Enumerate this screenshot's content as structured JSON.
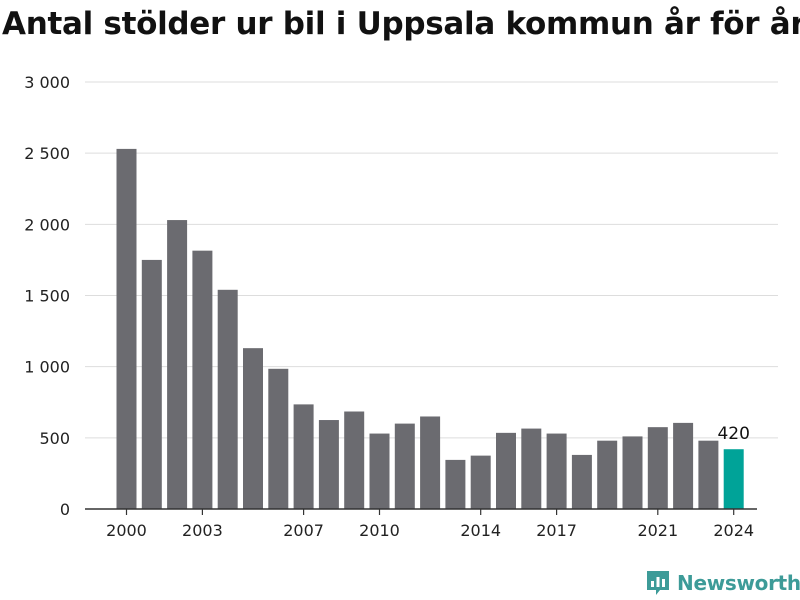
{
  "title": "Antal stölder ur bil i Uppsala kommun år för år",
  "colors": {
    "bar": "#6b6b70",
    "highlight": "#00a398",
    "grid": "#dddddd",
    "axis": "#333333",
    "brand": "#3d9b98"
  },
  "chart_data": {
    "type": "bar",
    "categories": [
      "2000",
      "2001",
      "2002",
      "2003",
      "2004",
      "2005",
      "2006",
      "2007",
      "2008",
      "2009",
      "2010",
      "2011",
      "2012",
      "2013",
      "2014",
      "2015",
      "2016",
      "2017",
      "2018",
      "2019",
      "2020",
      "2021",
      "2022",
      "2023",
      "2024"
    ],
    "values": [
      2530,
      1750,
      2030,
      1815,
      1540,
      1130,
      985,
      735,
      625,
      685,
      530,
      600,
      650,
      345,
      375,
      535,
      565,
      530,
      380,
      480,
      510,
      575,
      605,
      480,
      420
    ],
    "highlight_index": 24,
    "data_labels": [
      {
        "index": 24,
        "text": "420"
      }
    ],
    "y_ticks": [
      {
        "value": 0,
        "label": "0"
      },
      {
        "value": 500,
        "label": "500"
      },
      {
        "value": 1000,
        "label": "1 000"
      },
      {
        "value": 1500,
        "label": "1 500"
      },
      {
        "value": 2000,
        "label": "2 000"
      },
      {
        "value": 2500,
        "label": "2 500"
      },
      {
        "value": 3000,
        "label": "3 000"
      }
    ],
    "x_tick_labels": [
      "2000",
      "2003",
      "2007",
      "2010",
      "2014",
      "2017",
      "2021",
      "2024"
    ],
    "ylim": [
      0,
      3000
    ],
    "grid": true,
    "xlabel": "",
    "ylabel": ""
  },
  "footer": {
    "brand": "Newsworthy"
  }
}
